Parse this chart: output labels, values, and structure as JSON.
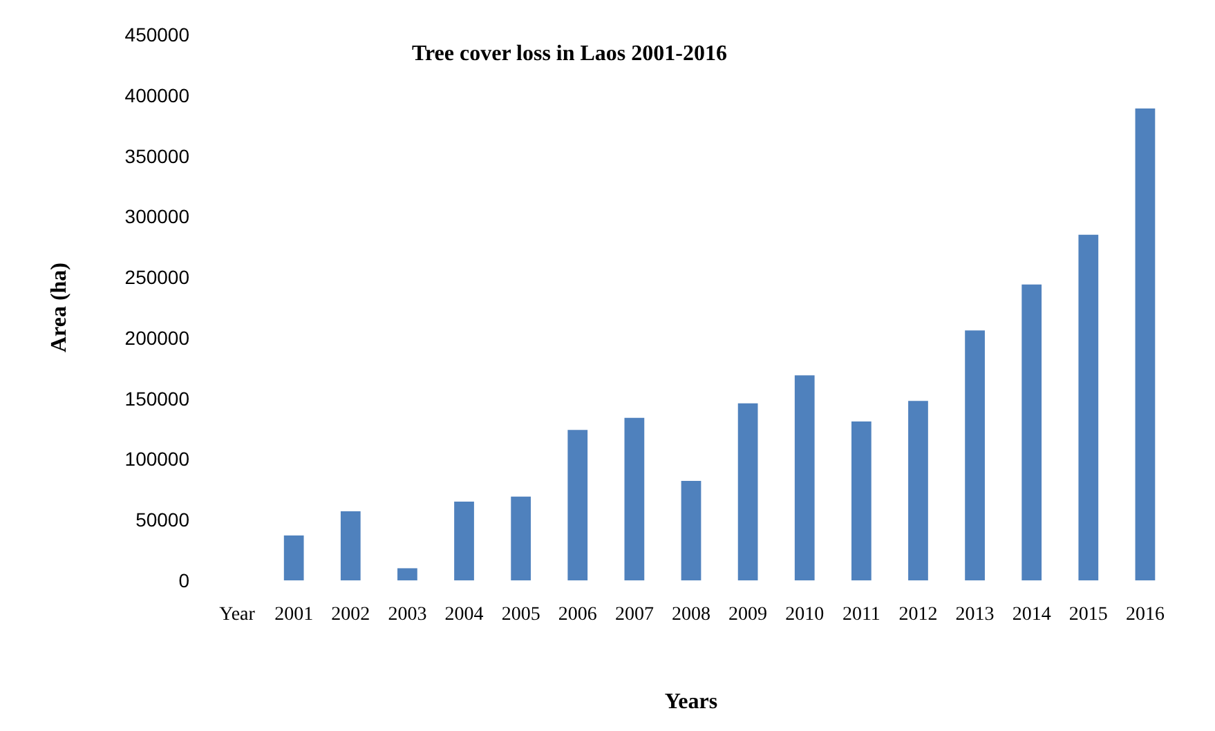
{
  "chart_data": {
    "type": "bar",
    "title": "Tree cover loss in Laos 2001-2016",
    "xlabel": "Years",
    "ylabel": "Area (ha)",
    "categories": [
      "Year",
      "2001",
      "2002",
      "2003",
      "2004",
      "2005",
      "2006",
      "2007",
      "2008",
      "2009",
      "2010",
      "2011",
      "2012",
      "2013",
      "2014",
      "2015",
      "2016"
    ],
    "values": [
      null,
      37000,
      57000,
      10000,
      65000,
      69000,
      124000,
      134000,
      82000,
      146000,
      169000,
      131000,
      148000,
      206000,
      244000,
      285000,
      389000
    ],
    "color": "#4f81bd",
    "ylim": [
      0,
      450000
    ],
    "yticks": [
      0,
      50000,
      100000,
      150000,
      200000,
      250000,
      300000,
      350000,
      400000,
      450000
    ],
    "grid": false
  }
}
